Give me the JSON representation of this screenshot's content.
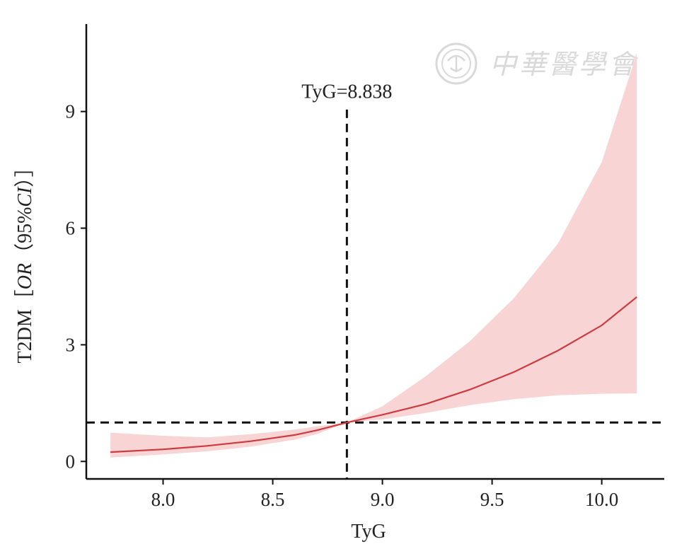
{
  "chart_data": {
    "type": "line",
    "title": "",
    "xlabel": "TyG",
    "ylabel_parts": {
      "prefix": "T2DM［",
      "italic1": "OR",
      "mid": "（95%",
      "italic2": "CI",
      "suffix": "）］"
    },
    "xlim": [
      7.65,
      10.285
    ],
    "ylim": [
      -0.45,
      11.25
    ],
    "x_ticks": [
      8.0,
      8.5,
      9.0,
      9.5,
      10.0
    ],
    "x_tick_labels": [
      "8.0",
      "8.5",
      "9.0",
      "9.5",
      "10.0"
    ],
    "y_ticks": [
      0,
      3,
      6,
      9
    ],
    "y_tick_labels": [
      "0",
      "3",
      "6",
      "9"
    ],
    "grid": false,
    "reference_lines": {
      "vertical_x": 8.838,
      "horizontal_y": 1.0,
      "style": "dashed",
      "color": "#111111"
    },
    "annotation": {
      "text": "TyG=8.838",
      "x": 8.838,
      "y": 9.35
    },
    "series": [
      {
        "x": [
          7.76,
          8.0,
          8.2,
          8.4,
          8.6,
          8.7,
          8.838,
          9.0,
          9.2,
          9.4,
          9.6,
          9.8,
          10.0,
          10.16
        ],
        "y": [
          0.24,
          0.31,
          0.4,
          0.52,
          0.68,
          0.8,
          1.0,
          1.2,
          1.48,
          1.85,
          2.3,
          2.85,
          3.5,
          4.23
        ],
        "color": "#cc3b3f",
        "ci_lower": [
          0.1,
          0.18,
          0.26,
          0.38,
          0.56,
          0.7,
          1.0,
          1.08,
          1.25,
          1.45,
          1.6,
          1.7,
          1.74,
          1.75
        ],
        "ci_upper": [
          0.74,
          0.66,
          0.62,
          0.7,
          0.82,
          0.9,
          1.0,
          1.42,
          2.2,
          3.1,
          4.2,
          5.6,
          7.7,
          10.5
        ],
        "ci_color": "#f9d4d4"
      }
    ]
  },
  "watermark": {
    "text": "中華醫學會",
    "emblem": "association-seal-icon"
  }
}
